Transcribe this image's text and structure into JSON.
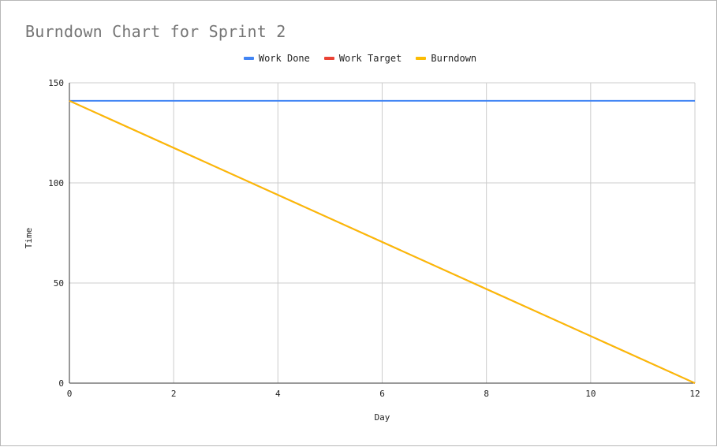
{
  "chart_data": {
    "type": "line",
    "title": "Burndown Chart for Sprint 2",
    "xlabel": "Day",
    "ylabel": "Time",
    "xlim": [
      0,
      12
    ],
    "ylim": [
      0,
      150
    ],
    "x_ticks": [
      0,
      2,
      4,
      6,
      8,
      10,
      12
    ],
    "y_ticks": [
      0,
      50,
      100,
      150
    ],
    "grid": true,
    "legend_position": "top",
    "series": [
      {
        "name": "Work Done",
        "color": "#4285f4",
        "x": [
          0,
          12
        ],
        "y": [
          141,
          141
        ]
      },
      {
        "name": "Work Target",
        "color": "#ea4335",
        "x": [
          0,
          12
        ],
        "y": [
          141,
          0
        ]
      },
      {
        "name": "Burndown",
        "color": "#fbbc04",
        "x": [
          0,
          12
        ],
        "y": [
          141,
          0
        ]
      }
    ]
  }
}
